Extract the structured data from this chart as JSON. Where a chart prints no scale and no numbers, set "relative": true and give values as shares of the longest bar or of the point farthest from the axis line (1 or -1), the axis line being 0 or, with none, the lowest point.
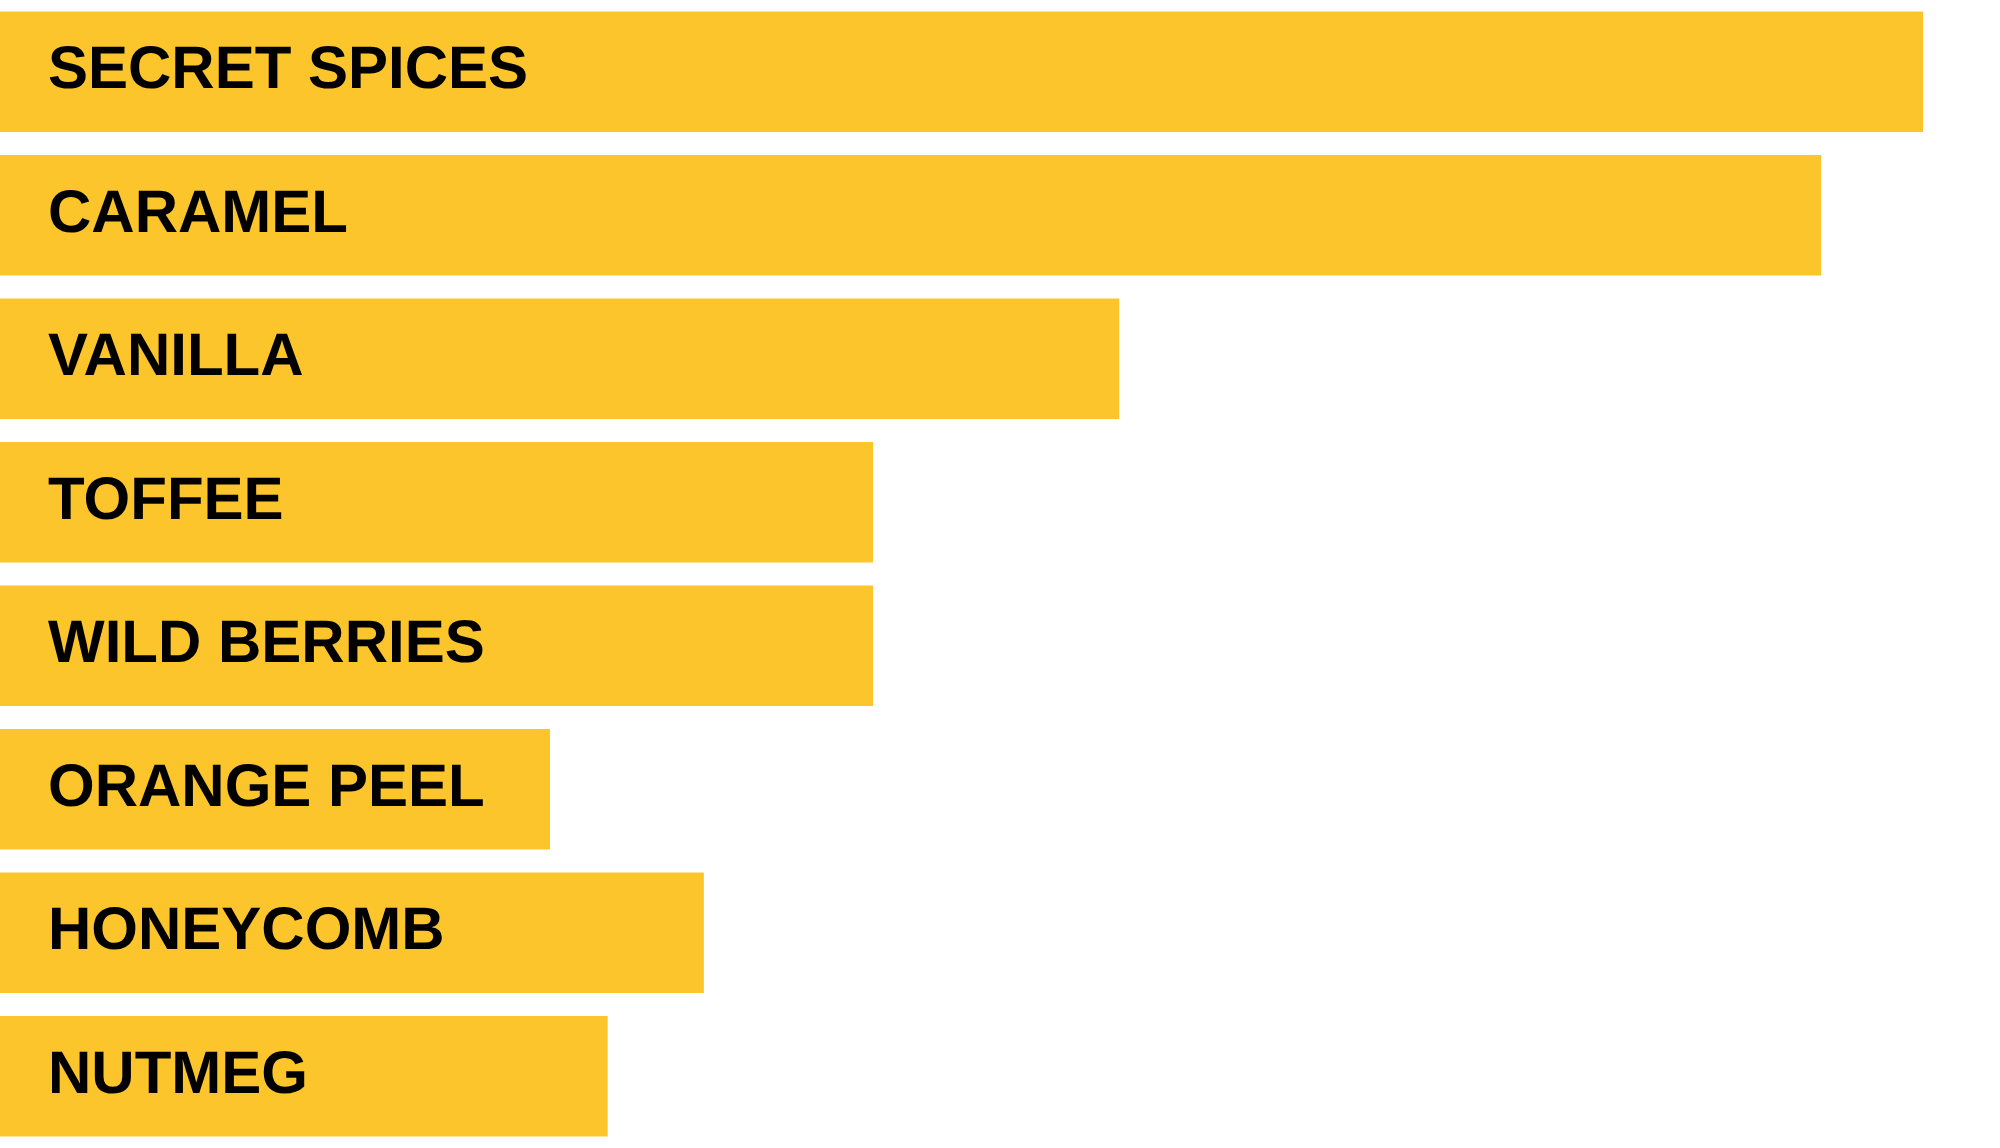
{
  "chart_data": {
    "type": "bar",
    "orientation": "horizontal",
    "relative": true,
    "categories": [
      "SECRET SPICES",
      "CARAMEL",
      "VANILLA",
      "TOFFEE",
      "WILD BERRIES",
      "ORANGE PEEL",
      "HONEYCOMB",
      "NUTMEG"
    ],
    "values": [
      1,
      0.947,
      0.582,
      0.454,
      0.454,
      0.286,
      0.366,
      0.316
    ],
    "color": "#fdc52c"
  }
}
